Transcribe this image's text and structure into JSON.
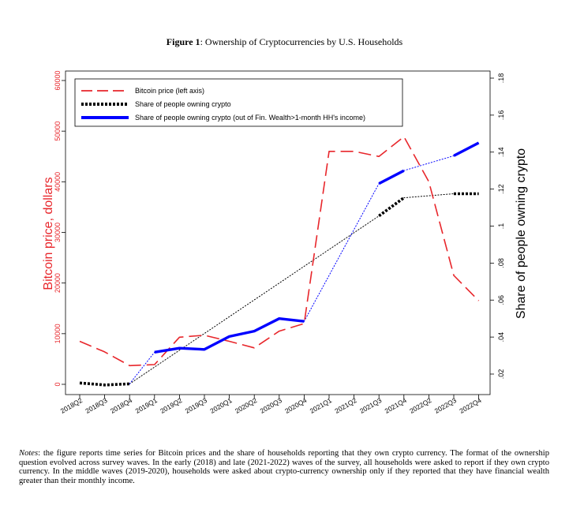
{
  "figure": {
    "title_label": "Figure 1",
    "title_text": ": Ownership of Cryptocurrencies by U.S. Households"
  },
  "notes": {
    "label": "Notes",
    "text": ": the figure reports time series for Bitcoin prices and the share of households reporting that they own crypto currency. The format of the ownership question evolved across survey waves. In the early (2018) and late (2021-2022) waves of the survey, all households were asked to report if they own crypto currency. In the middle waves (2019-2020), households were asked about crypto-currency ownership only if they reported that they have financial wealth greater than their monthly income."
  },
  "chart_data": {
    "type": "line",
    "categories": [
      "2018Q2",
      "2018Q3",
      "2018Q4",
      "2019Q1",
      "2019Q2",
      "2019Q3",
      "2020Q1",
      "2020Q2",
      "2020Q3",
      "2020Q4",
      "2021Q1",
      "2021Q2",
      "2021Q3",
      "2021Q4",
      "2022Q2",
      "2022Q3",
      "2022Q4"
    ],
    "ylabel_left": "Bitcoin price, dollars",
    "ylabel_right": "Share of people owning crypto",
    "ylim_left": [
      0,
      60000
    ],
    "ylim_right": [
      0.02,
      0.18
    ],
    "yticks_left": [
      "0",
      "10000",
      "20000",
      "30000",
      "40000",
      "50000",
      "60000"
    ],
    "yticks_right": [
      ".02",
      ".04",
      ".06",
      ".08",
      ".1",
      ".12",
      ".14",
      ".16",
      ".18"
    ],
    "yticks_right_values": [
      0.02,
      0.04,
      0.06,
      0.08,
      0.1,
      0.12,
      0.14,
      0.16,
      0.18
    ],
    "legend_position": "top-left inside",
    "series": [
      {
        "name": "Bitcoin price (left axis)",
        "axis": "left",
        "color": "#e8262b",
        "style": "long-dash",
        "values": [
          8500,
          6400,
          3700,
          3900,
          9300,
          9700,
          8500,
          7200,
          10500,
          12000,
          46000,
          46000,
          45000,
          48900,
          40000,
          21500,
          16500
        ]
      },
      {
        "name": "Share of people owning crypto",
        "axis": "right",
        "color": "#000000",
        "style": "thick-dotted",
        "values": [
          0.0152,
          0.0141,
          0.0147,
          null,
          null,
          null,
          null,
          null,
          null,
          null,
          null,
          null,
          0.1055,
          0.1153,
          null,
          0.1175,
          0.1175
        ]
      },
      {
        "name": "Share of people owning crypto (out of Fin. Wealth>1-month HH's income)",
        "axis": "right",
        "color": "#0000ff",
        "style": "thick-solid",
        "values": [
          null,
          null,
          null,
          0.0318,
          0.034,
          0.0333,
          0.0403,
          0.0432,
          0.05,
          0.0485,
          null,
          null,
          0.123,
          0.13,
          null,
          0.138,
          0.145
        ]
      }
    ],
    "connectors": [
      {
        "color": "#000000",
        "style": "dotted",
        "from": [
          "2018Q4",
          0.0147
        ],
        "to": [
          "2021Q3",
          0.1055
        ]
      },
      {
        "color": "#000000",
        "style": "dotted",
        "from": [
          "2021Q4",
          0.1153
        ],
        "to": [
          "2022Q3",
          0.1175
        ]
      },
      {
        "color": "#0000ff",
        "style": "dotted",
        "from": [
          "2018Q4",
          0.0147
        ],
        "to": [
          "2019Q1",
          0.0318
        ]
      },
      {
        "color": "#0000ff",
        "style": "dotted",
        "from": [
          "2020Q4",
          0.0485
        ],
        "to": [
          "2021Q3",
          0.123
        ]
      },
      {
        "color": "#0000ff",
        "style": "dotted",
        "from": [
          "2021Q4",
          0.13
        ],
        "to": [
          "2022Q3",
          0.138
        ]
      }
    ]
  }
}
